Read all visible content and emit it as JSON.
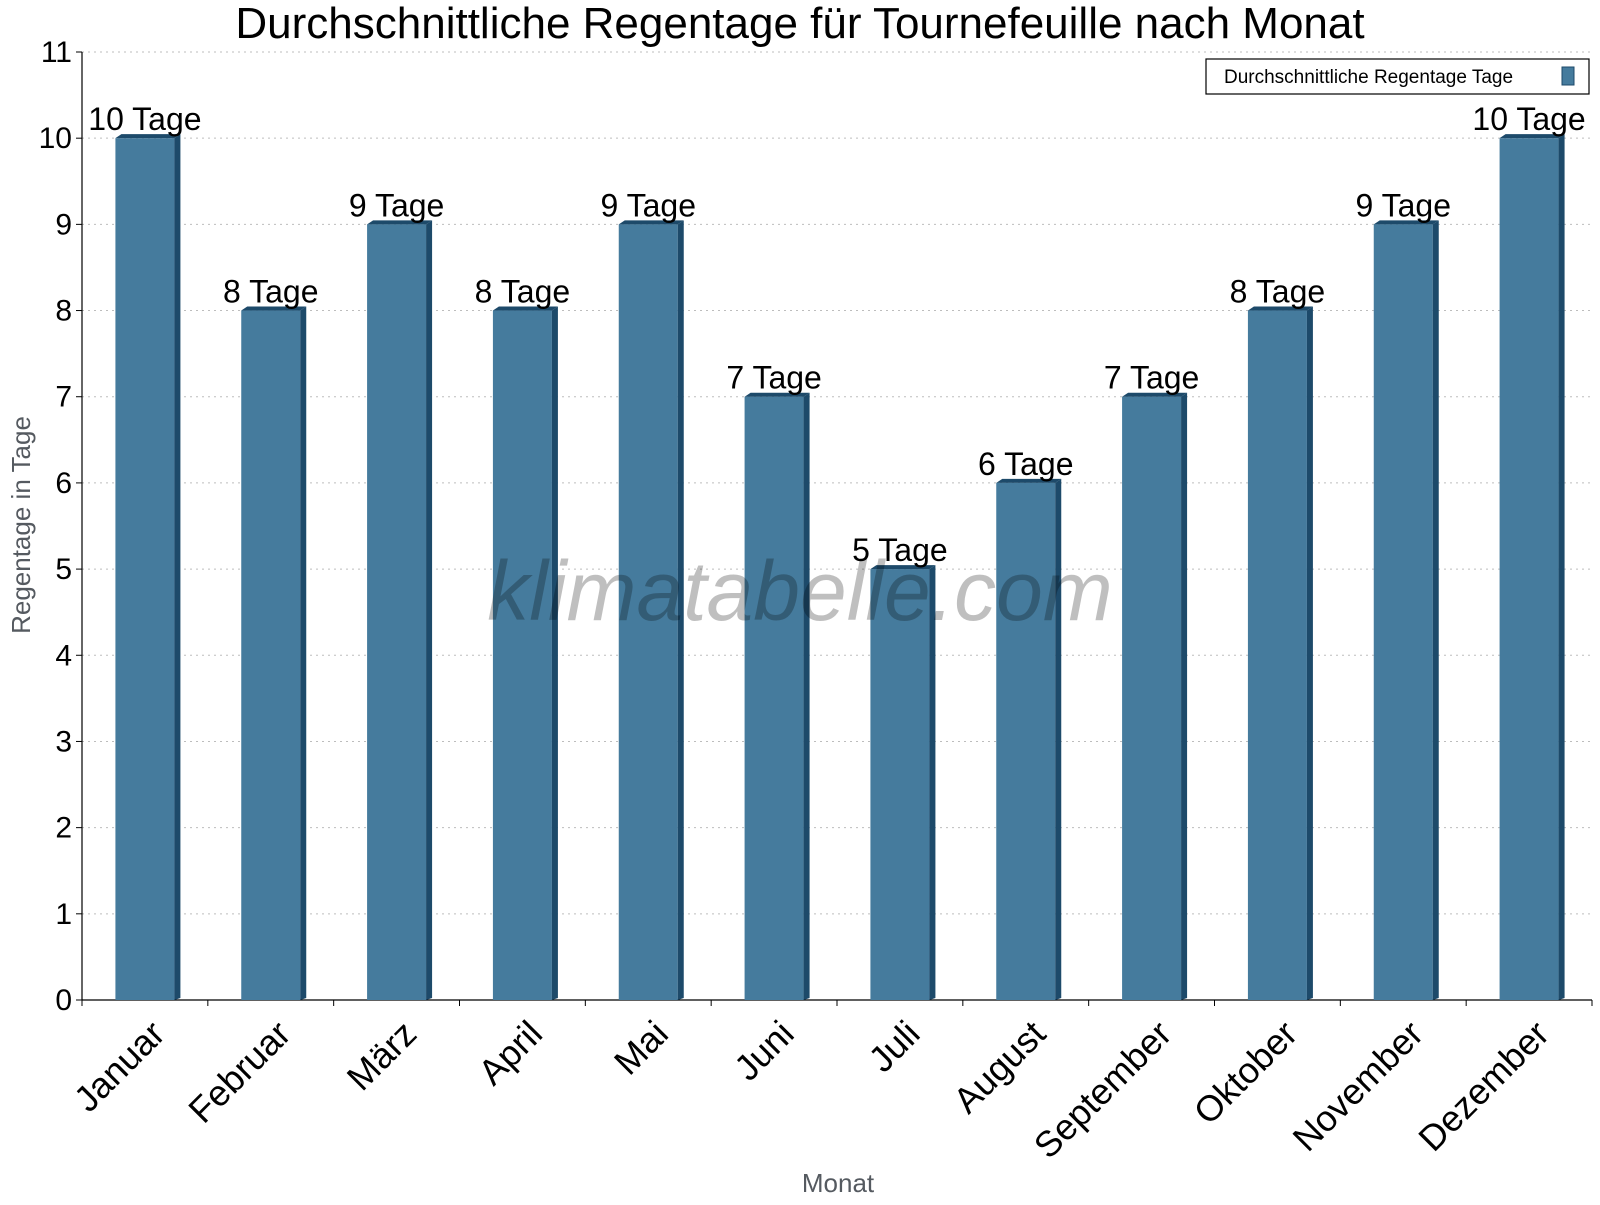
{
  "watermark": "klimatabelle.com",
  "chart_data": {
    "type": "bar",
    "title": "Durchschnittliche Regentage für Tournefeuille nach Monat",
    "xlabel": "Monat",
    "ylabel": "Regentage in Tage",
    "ylim": [
      0,
      11
    ],
    "yticks": [
      0,
      1,
      2,
      3,
      4,
      5,
      6,
      7,
      8,
      9,
      10,
      11
    ],
    "grid": true,
    "legend_position": "top-right",
    "categories": [
      "Januar",
      "Februar",
      "März",
      "April",
      "Mai",
      "Juni",
      "Juli",
      "August",
      "September",
      "Oktober",
      "November",
      "Dezember"
    ],
    "series": [
      {
        "name": "Durchschnittliche Regentage Tage",
        "color": "#457b9d",
        "values": [
          10,
          8,
          9,
          8,
          9,
          7,
          5,
          6,
          7,
          8,
          9,
          10
        ],
        "labels": [
          "10 Tage",
          "8 Tage",
          "9 Tage",
          "8 Tage",
          "9 Tage",
          "7 Tage",
          "5 Tage",
          "6 Tage",
          "7 Tage",
          "8 Tage",
          "9 Tage",
          "10 Tage"
        ]
      }
    ]
  }
}
